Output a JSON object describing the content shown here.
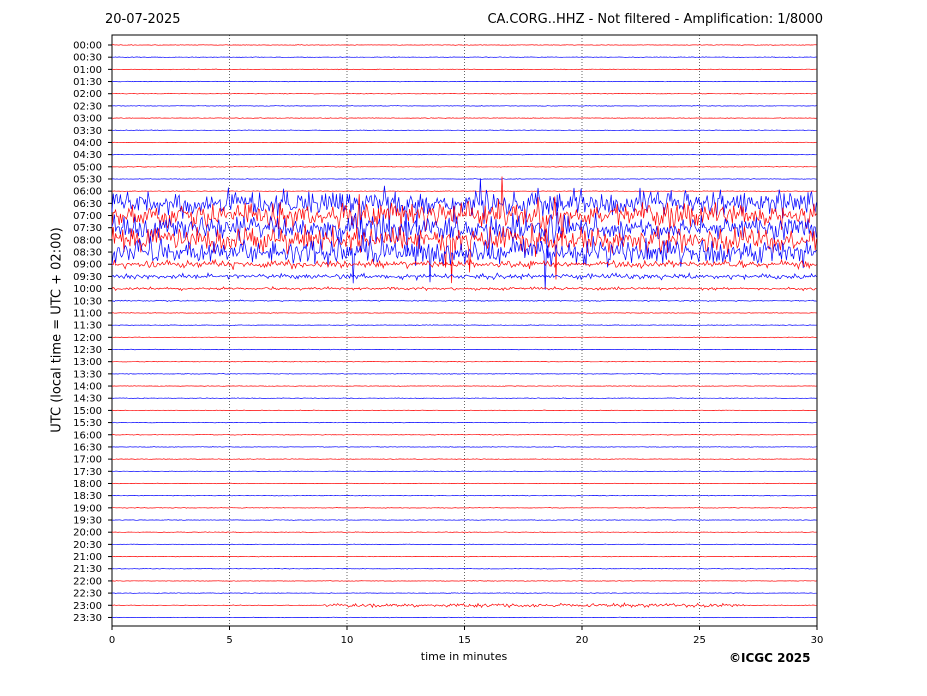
{
  "header": {
    "date": "20-07-2025",
    "title": "CA.CORG..HHZ - Not filtered - Amplification: 1/8000"
  },
  "footer": {
    "copyright": "©ICGC 2025"
  },
  "colors": {
    "trace_a": "#ff0000",
    "trace_b": "#0000ff",
    "grid": "#000000"
  },
  "chart_data": {
    "type": "line",
    "title": "CA.CORG..HHZ - Not filtered - Amplification: 1/8000",
    "xlabel": "time in minutes",
    "ylabel": "UTC (local time = UTC + 02:00)",
    "xlim": [
      0,
      30
    ],
    "x_ticks": [
      0,
      5,
      10,
      15,
      20,
      25,
      30
    ],
    "grid": "vertical dotted lines every 5 minutes",
    "row_labels": [
      "00:00",
      "00:30",
      "01:00",
      "01:30",
      "02:00",
      "02:30",
      "03:00",
      "03:30",
      "04:00",
      "04:30",
      "05:00",
      "05:30",
      "06:00",
      "06:30",
      "07:00",
      "07:30",
      "08:00",
      "08:30",
      "09:00",
      "09:30",
      "10:00",
      "10:30",
      "11:00",
      "11:30",
      "12:00",
      "12:30",
      "13:00",
      "13:30",
      "14:00",
      "14:30",
      "15:00",
      "15:30",
      "16:00",
      "16:30",
      "17:00",
      "17:30",
      "18:00",
      "18:30",
      "19:00",
      "19:30",
      "20:00",
      "20:30",
      "21:00",
      "21:30",
      "22:00",
      "22:30",
      "23:00",
      "23:30"
    ],
    "series_colors": [
      "#ff0000",
      "#0000ff"
    ],
    "events": [
      {
        "rows": [
          "06:30",
          "07:00",
          "07:30",
          "08:00",
          "08:30"
        ],
        "minutes": [
          0,
          30
        ],
        "level": "strong"
      },
      {
        "rows": [
          "09:00",
          "09:30",
          "10:00",
          "10:30"
        ],
        "minutes": [
          0,
          30
        ],
        "level": "moderate"
      },
      {
        "rows": [
          "23:00"
        ],
        "minutes": [
          9,
          27
        ],
        "level": "weak"
      }
    ]
  }
}
